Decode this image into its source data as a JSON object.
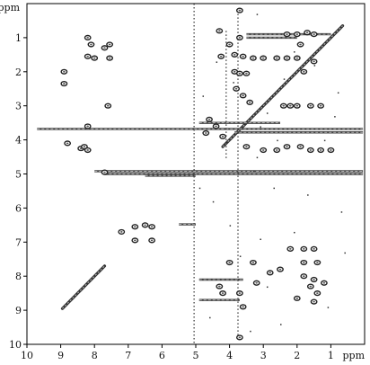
{
  "chart_data": {
    "type": "scatter",
    "title": "",
    "axis_unit": "ppm",
    "x_axis": {
      "unit_label": "ppm",
      "range": [
        10,
        0
      ],
      "ticks": [
        "10",
        "9",
        "8",
        "7",
        "6",
        "5",
        "4",
        "3",
        "2",
        "1"
      ]
    },
    "y_axis": {
      "unit_label": "ppm",
      "range": [
        0,
        10
      ],
      "ticks": [
        "1",
        "2",
        "3",
        "4",
        "5",
        "6",
        "7",
        "8",
        "9",
        "10"
      ]
    },
    "frame": "box",
    "series": [
      {
        "kind": "diagonal",
        "segments": [
          {
            "from": [
              8.95,
              8.95
            ],
            "to": [
              7.7,
              7.7
            ]
          },
          {
            "from": [
              4.2,
              4.2
            ],
            "to": [
              0.65,
              0.65
            ]
          }
        ]
      },
      {
        "kind": "horizontal_streaks",
        "lines": [
          {
            "y": 3.68,
            "x_from": 9.7,
            "x_to": 0.05
          },
          {
            "y": 3.78,
            "x_from": 3.85,
            "x_to": 0.05
          },
          {
            "y": 3.5,
            "x_from": 4.9,
            "x_to": 2.5
          },
          {
            "y": 4.92,
            "x_from": 8.0,
            "x_to": 0.05
          },
          {
            "y": 5.0,
            "x_from": 7.7,
            "x_to": 0.05
          },
          {
            "y": 5.05,
            "x_from": 6.5,
            "x_to": 5.0
          },
          {
            "y": 0.9,
            "x_from": 3.5,
            "x_to": 1.0
          },
          {
            "y": 1.0,
            "x_from": 3.5,
            "x_to": 2.0
          },
          {
            "y": 6.48,
            "x_from": 5.5,
            "x_to": 5.0
          },
          {
            "y": 8.1,
            "x_from": 4.9,
            "x_to": 3.6
          },
          {
            "y": 8.7,
            "x_from": 4.9,
            "x_to": 3.7
          }
        ]
      },
      {
        "kind": "vertical_streaks",
        "lines": [
          {
            "x": 5.05,
            "y_from": 0.0,
            "y_to": 10.0
          },
          {
            "x": 3.75,
            "y_from": 0.3,
            "y_to": 9.9
          },
          {
            "x": 4.1,
            "y_from": 0.8,
            "y_to": 4.6
          }
        ]
      },
      {
        "kind": "cross_peaks",
        "points": [
          [
            8.2,
            1.0
          ],
          [
            8.2,
            1.55
          ],
          [
            8.1,
            1.2
          ],
          [
            8.0,
            1.6
          ],
          [
            7.7,
            1.3
          ],
          [
            7.55,
            1.2
          ],
          [
            7.55,
            1.6
          ],
          [
            8.9,
            2.0
          ],
          [
            8.9,
            2.35
          ],
          [
            7.6,
            3.0
          ],
          [
            8.8,
            4.1
          ],
          [
            8.4,
            4.25
          ],
          [
            8.3,
            4.2
          ],
          [
            8.2,
            4.3
          ],
          [
            7.7,
            4.95
          ],
          [
            8.2,
            3.6
          ],
          [
            6.8,
            6.55
          ],
          [
            6.3,
            6.55
          ],
          [
            6.8,
            6.95
          ],
          [
            6.3,
            6.95
          ],
          [
            7.2,
            6.7
          ],
          [
            6.5,
            6.5
          ],
          [
            4.25,
            1.55
          ],
          [
            3.85,
            1.5
          ],
          [
            3.6,
            1.55
          ],
          [
            3.3,
            1.6
          ],
          [
            3.0,
            1.6
          ],
          [
            2.3,
            0.9
          ],
          [
            2.0,
            0.9
          ],
          [
            1.7,
            0.85
          ],
          [
            1.5,
            0.9
          ],
          [
            3.85,
            2.0
          ],
          [
            3.7,
            2.05
          ],
          [
            3.5,
            2.05
          ],
          [
            2.6,
            1.6
          ],
          [
            2.3,
            1.6
          ],
          [
            2.0,
            1.6
          ],
          [
            1.8,
            2.0
          ],
          [
            1.5,
            1.7
          ],
          [
            1.9,
            1.2
          ],
          [
            3.8,
            2.5
          ],
          [
            3.6,
            2.7
          ],
          [
            3.4,
            2.9
          ],
          [
            2.4,
            3.0
          ],
          [
            2.2,
            3.0
          ],
          [
            2.0,
            3.0
          ],
          [
            1.6,
            3.0
          ],
          [
            1.3,
            3.0
          ],
          [
            3.5,
            4.2
          ],
          [
            3.0,
            4.3
          ],
          [
            2.6,
            4.3
          ],
          [
            2.3,
            4.2
          ],
          [
            1.9,
            4.2
          ],
          [
            1.6,
            4.3
          ],
          [
            1.3,
            4.3
          ],
          [
            1.0,
            4.3
          ],
          [
            3.7,
            0.2
          ],
          [
            4.3,
            0.8
          ],
          [
            3.7,
            1.0
          ],
          [
            4.0,
            1.2
          ],
          [
            4.6,
            3.4
          ],
          [
            4.4,
            3.6
          ],
          [
            4.2,
            3.9
          ],
          [
            4.7,
            3.8
          ],
          [
            4.0,
            7.6
          ],
          [
            3.3,
            7.6
          ],
          [
            2.2,
            7.2
          ],
          [
            1.8,
            7.2
          ],
          [
            1.5,
            7.2
          ],
          [
            1.8,
            7.6
          ],
          [
            1.4,
            7.6
          ],
          [
            2.8,
            7.9
          ],
          [
            2.5,
            7.8
          ],
          [
            4.3,
            8.3
          ],
          [
            4.2,
            8.5
          ],
          [
            3.7,
            8.5
          ],
          [
            3.2,
            8.2
          ],
          [
            1.8,
            8.0
          ],
          [
            1.5,
            8.1
          ],
          [
            1.2,
            8.2
          ],
          [
            1.6,
            8.3
          ],
          [
            1.4,
            8.5
          ],
          [
            2.0,
            8.65
          ],
          [
            1.5,
            8.75
          ],
          [
            3.6,
            8.9
          ],
          [
            3.7,
            9.8
          ]
        ]
      },
      {
        "kind": "noise_specks",
        "points": [
          [
            3.2,
            0.3
          ],
          [
            1.5,
            1.8
          ],
          [
            2.4,
            2.2
          ],
          [
            2.9,
            3.2
          ],
          [
            0.9,
            3.3
          ],
          [
            1.2,
            4.0
          ],
          [
            2.6,
            4.0
          ],
          [
            3.2,
            4.5
          ],
          [
            4.9,
            5.4
          ],
          [
            4.5,
            5.8
          ],
          [
            4.0,
            6.5
          ],
          [
            3.1,
            6.9
          ],
          [
            2.1,
            6.7
          ],
          [
            0.6,
            7.3
          ],
          [
            3.7,
            7.4
          ],
          [
            2.9,
            8.3
          ],
          [
            1.1,
            8.9
          ],
          [
            2.5,
            9.4
          ],
          [
            4.6,
            9.2
          ],
          [
            3.4,
            9.6
          ],
          [
            0.7,
            6.1
          ],
          [
            1.7,
            5.6
          ],
          [
            2.7,
            5.4
          ],
          [
            3.1,
            3.6
          ],
          [
            3.9,
            2.3
          ],
          [
            4.4,
            1.7
          ],
          [
            4.8,
            2.7
          ],
          [
            2.1,
            1.4
          ],
          [
            0.8,
            2.6
          ],
          [
            3.3,
            4.9
          ]
        ]
      }
    ]
  }
}
